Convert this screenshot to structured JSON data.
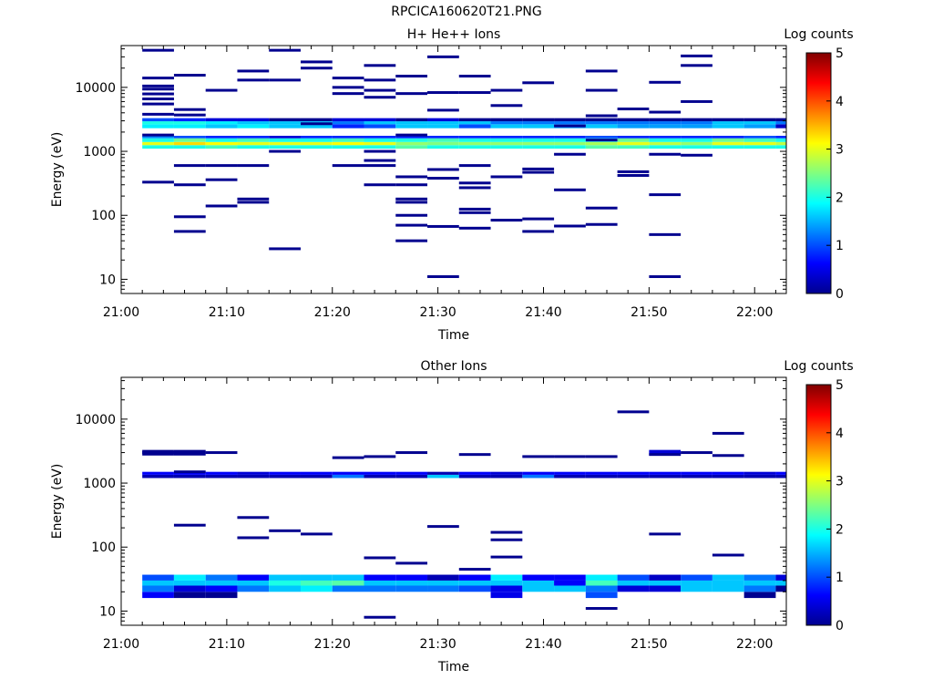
{
  "figure_title": "RPCICA160620T21.PNG",
  "colors": {
    "jet": [
      "#00008f",
      "#0000ff",
      "#0080ff",
      "#00ffff",
      "#80ff80",
      "#ffff00",
      "#ff8000",
      "#ff0000",
      "#800000"
    ]
  },
  "chart_data": [
    {
      "type": "heatmap",
      "title": "H+ He++ Ions",
      "xlabel": "Time",
      "ylabel": "Energy (eV)",
      "x_ticks": [
        "21:00",
        "21:10",
        "21:20",
        "21:30",
        "21:40",
        "21:50",
        "22:00"
      ],
      "y_ticks": [
        "10",
        "100",
        "1000",
        "10000"
      ],
      "y_scale": "log",
      "xlim_minutes": [
        0,
        63
      ],
      "ylim_ev": [
        6,
        45000
      ],
      "grid": false,
      "colorbar": {
        "label": "Log counts",
        "ticks": [
          "0",
          "1",
          "2",
          "3",
          "4",
          "5"
        ],
        "range": [
          0,
          5
        ]
      },
      "time_bins": [
        "21:02",
        "21:05",
        "21:08",
        "21:11",
        "21:14",
        "21:17",
        "21:20",
        "21:23",
        "21:26",
        "21:29",
        "21:32",
        "21:35",
        "21:38",
        "21:41",
        "21:44",
        "21:47",
        "21:50",
        "21:53",
        "21:56",
        "21:59",
        "22:02"
      ],
      "bands_ev": [
        {
          "e_low": 1100,
          "e_high": 1250,
          "log_counts": [
            2.0,
            2.0,
            2.2,
            2.0,
            2.0,
            2.0,
            2.0,
            2.0,
            2.3,
            2.0,
            2.0,
            2.0,
            2.0,
            2.0,
            2.3,
            2.2,
            2.0,
            2.0,
            2.0,
            2.0,
            2.0
          ]
        },
        {
          "e_low": 1250,
          "e_high": 1400,
          "log_counts": [
            3.0,
            3.3,
            3.1,
            3.0,
            3.0,
            3.0,
            3.1,
            3.0,
            2.6,
            2.5,
            2.6,
            2.6,
            2.6,
            2.6,
            2.7,
            3.0,
            2.8,
            2.6,
            3.0,
            3.0,
            2.8
          ]
        },
        {
          "e_low": 1400,
          "e_high": 1600,
          "log_counts": [
            2.0,
            2.4,
            2.0,
            2.2,
            2.0,
            2.0,
            2.2,
            2.0,
            2.0,
            2.2,
            2.0,
            2.0,
            2.0,
            2.0,
            2.0,
            2.4,
            2.0,
            2.0,
            2.4,
            2.2,
            2.0
          ]
        },
        {
          "e_low": 1600,
          "e_high": 1750,
          "log_counts": [
            1.3,
            1.0,
            0.8,
            0.8,
            0.4,
            0.8,
            0.8,
            0.8,
            0.8,
            0.8,
            0.8,
            0.8,
            0.8,
            0.8,
            1.0,
            0.8,
            0.8,
            0.8,
            0.8,
            1.0,
            0.8
          ]
        },
        {
          "e_low": 2300,
          "e_high": 2650,
          "log_counts": [
            1.8,
            1.8,
            1.6,
            1.8,
            1.6,
            1.6,
            0.8,
            1.0,
            1.6,
            1.6,
            1.0,
            1.6,
            1.6,
            1.4,
            1.6,
            1.4,
            1.4,
            1.4,
            1.6,
            1.4,
            0.3
          ]
        },
        {
          "e_low": 2650,
          "e_high": 2950,
          "log_counts": [
            2.0,
            2.0,
            1.8,
            1.6,
            1.6,
            1.6,
            1.2,
            1.6,
            1.6,
            1.6,
            1.6,
            1.2,
            1.2,
            1.2,
            1.2,
            1.2,
            1.2,
            1.2,
            1.6,
            1.6,
            1.2
          ]
        },
        {
          "e_low": 2950,
          "e_high": 3300,
          "log_counts": [
            1.0,
            0.8,
            0.4,
            0.4,
            0.0,
            0.0,
            0.4,
            0.4,
            0.0,
            0.4,
            0.0,
            0.0,
            0.0,
            0.0,
            0.0,
            0.0,
            0.0,
            0.0,
            0.0,
            0.0,
            0.0
          ]
        }
      ],
      "sparse_counts_ev": [
        {
          "time": "21:02",
          "energies": [
            330,
            1800,
            3800,
            5500,
            6600,
            7900,
            9400,
            10500,
            14000,
            38000
          ]
        },
        {
          "time": "21:05",
          "energies": [
            56,
            95,
            300,
            600,
            3700,
            4500,
            15500
          ]
        },
        {
          "time": "21:08",
          "energies": [
            140,
            360,
            600,
            9000
          ]
        },
        {
          "time": "21:11",
          "energies": [
            160,
            180,
            600,
            13000,
            18000
          ]
        },
        {
          "time": "21:14",
          "energies": [
            30,
            1000,
            13000,
            38000
          ]
        },
        {
          "time": "21:17",
          "energies": [
            2700,
            20000,
            25000
          ]
        },
        {
          "time": "21:20",
          "energies": [
            600,
            8000,
            10000,
            14000
          ]
        },
        {
          "time": "21:23",
          "energies": [
            300,
            600,
            720,
            1000,
            7000,
            9000,
            13000,
            22000
          ]
        },
        {
          "time": "21:26",
          "energies": [
            40,
            70,
            100,
            160,
            180,
            300,
            400,
            1800,
            8000,
            15000
          ]
        },
        {
          "time": "21:29",
          "energies": [
            11,
            67,
            380,
            520,
            4400,
            8300,
            30000
          ]
        },
        {
          "time": "21:32",
          "energies": [
            63,
            110,
            125,
            270,
            320,
            600,
            8300,
            15000
          ]
        },
        {
          "time": "21:35",
          "energies": [
            84,
            400,
            5200,
            9000
          ]
        },
        {
          "time": "21:38",
          "energies": [
            56,
            88,
            470,
            530,
            11800
          ]
        },
        {
          "time": "21:41",
          "energies": [
            68,
            250,
            900,
            2500
          ]
        },
        {
          "time": "21:44",
          "energies": [
            72,
            130,
            1500,
            3600,
            9000,
            18000
          ]
        },
        {
          "time": "21:47",
          "energies": [
            420,
            480,
            4600
          ]
        },
        {
          "time": "21:50",
          "energies": [
            11,
            50,
            210,
            900,
            4100,
            12000
          ]
        },
        {
          "time": "21:53",
          "energies": [
            870,
            6000,
            22000,
            31000
          ]
        }
      ]
    },
    {
      "type": "heatmap",
      "title": "Other Ions",
      "xlabel": "Time",
      "ylabel": "Energy (eV)",
      "x_ticks": [
        "21:00",
        "21:10",
        "21:20",
        "21:30",
        "21:40",
        "21:50",
        "22:00"
      ],
      "y_ticks": [
        "10",
        "100",
        "1000",
        "10000"
      ],
      "y_scale": "log",
      "xlim_minutes": [
        0,
        63
      ],
      "ylim_ev": [
        6,
        45000
      ],
      "grid": false,
      "colorbar": {
        "label": "Log counts",
        "ticks": [
          "0",
          "1",
          "2",
          "3",
          "4",
          "5"
        ],
        "range": [
          0,
          5
        ]
      },
      "time_bins": [
        "21:02",
        "21:05",
        "21:08",
        "21:11",
        "21:14",
        "21:17",
        "21:20",
        "21:23",
        "21:26",
        "21:29",
        "21:32",
        "21:35",
        "21:38",
        "21:41",
        "21:44",
        "21:47",
        "21:50",
        "21:53",
        "21:56",
        "21:59",
        "22:02"
      ],
      "bands_ev": [
        {
          "e_low": 16,
          "e_high": 20,
          "log_counts": [
            0.6,
            0.0,
            0.0,
            -1,
            -1,
            -1,
            -1,
            -1,
            -1,
            -1,
            -1,
            0.5,
            -1,
            -1,
            1.0,
            -1,
            -1,
            -1,
            -1,
            0.0,
            -1
          ]
        },
        {
          "e_low": 20,
          "e_high": 25,
          "log_counts": [
            1.2,
            0.4,
            0.6,
            1.2,
            1.6,
            1.8,
            1.2,
            1.2,
            1.2,
            1.2,
            1.0,
            0.5,
            1.6,
            1.6,
            1.2,
            0.4,
            0.4,
            1.6,
            1.6,
            1.2,
            0.0
          ]
        },
        {
          "e_low": 25,
          "e_high": 30,
          "log_counts": [
            1.6,
            1.6,
            1.6,
            1.6,
            2.0,
            2.2,
            2.3,
            1.6,
            1.6,
            1.6,
            1.6,
            1.6,
            1.6,
            0.6,
            2.2,
            1.6,
            1.6,
            1.6,
            1.6,
            1.6,
            1.6
          ]
        },
        {
          "e_low": 30,
          "e_high": 37,
          "log_counts": [
            1.0,
            1.8,
            1.2,
            0.6,
            1.6,
            1.6,
            1.6,
            0.6,
            0.6,
            0.2,
            0.6,
            1.8,
            0.6,
            0.6,
            1.8,
            1.0,
            0.3,
            1.0,
            1.6,
            1.2,
            0.4
          ]
        },
        {
          "e_low": 1200,
          "e_high": 1350,
          "log_counts": [
            0.2,
            0.2,
            0.2,
            0.2,
            0.2,
            0.2,
            1.2,
            0.2,
            0.2,
            1.6,
            0.2,
            0.2,
            1.2,
            0.2,
            0.2,
            0.2,
            0.2,
            0.2,
            0.2,
            0.2,
            0.2
          ]
        },
        {
          "e_low": 1350,
          "e_high": 1500,
          "log_counts": [
            0.6,
            0.6,
            0.6,
            0.4,
            0.6,
            0.6,
            0.6,
            0.6,
            0.6,
            0.2,
            0.6,
            0.4,
            0.6,
            0.6,
            0.6,
            0.6,
            0.6,
            0.6,
            0.6,
            0.4,
            0.6
          ]
        },
        {
          "e_low": 2700,
          "e_high": 3300,
          "log_counts": [
            0.0,
            0.0,
            -1,
            -1,
            -1,
            -1,
            -1,
            -1,
            -1,
            -1,
            -1,
            -1,
            -1,
            -1,
            -1,
            -1,
            0.4,
            -1,
            -1,
            -1,
            -1
          ]
        }
      ],
      "sparse_counts_ev": [
        {
          "time": "21:02",
          "energies": [
            3000
          ]
        },
        {
          "time": "21:05",
          "energies": [
            220,
            1500,
            3000
          ]
        },
        {
          "time": "21:08",
          "energies": [
            3000
          ]
        },
        {
          "time": "21:11",
          "energies": [
            140,
            290
          ]
        },
        {
          "time": "21:14",
          "energies": [
            180
          ]
        },
        {
          "time": "21:17",
          "energies": [
            160
          ]
        },
        {
          "time": "21:20",
          "energies": [
            2500
          ]
        },
        {
          "time": "21:23",
          "energies": [
            8,
            68,
            2600
          ]
        },
        {
          "time": "21:26",
          "energies": [
            56,
            3000
          ]
        },
        {
          "time": "21:29",
          "energies": [
            210
          ]
        },
        {
          "time": "21:32",
          "energies": [
            45,
            2800
          ]
        },
        {
          "time": "21:35",
          "energies": [
            70,
            130,
            170
          ]
        },
        {
          "time": "21:38",
          "energies": [
            2600
          ]
        },
        {
          "time": "21:41",
          "energies": [
            2600
          ]
        },
        {
          "time": "21:44",
          "energies": [
            11,
            2600
          ]
        },
        {
          "time": "21:47",
          "energies": [
            13000
          ]
        },
        {
          "time": "21:50",
          "energies": [
            160,
            2800
          ]
        },
        {
          "time": "21:53",
          "energies": [
            3000
          ]
        },
        {
          "time": "21:56",
          "energies": [
            75,
            2700,
            6000
          ]
        }
      ]
    }
  ]
}
